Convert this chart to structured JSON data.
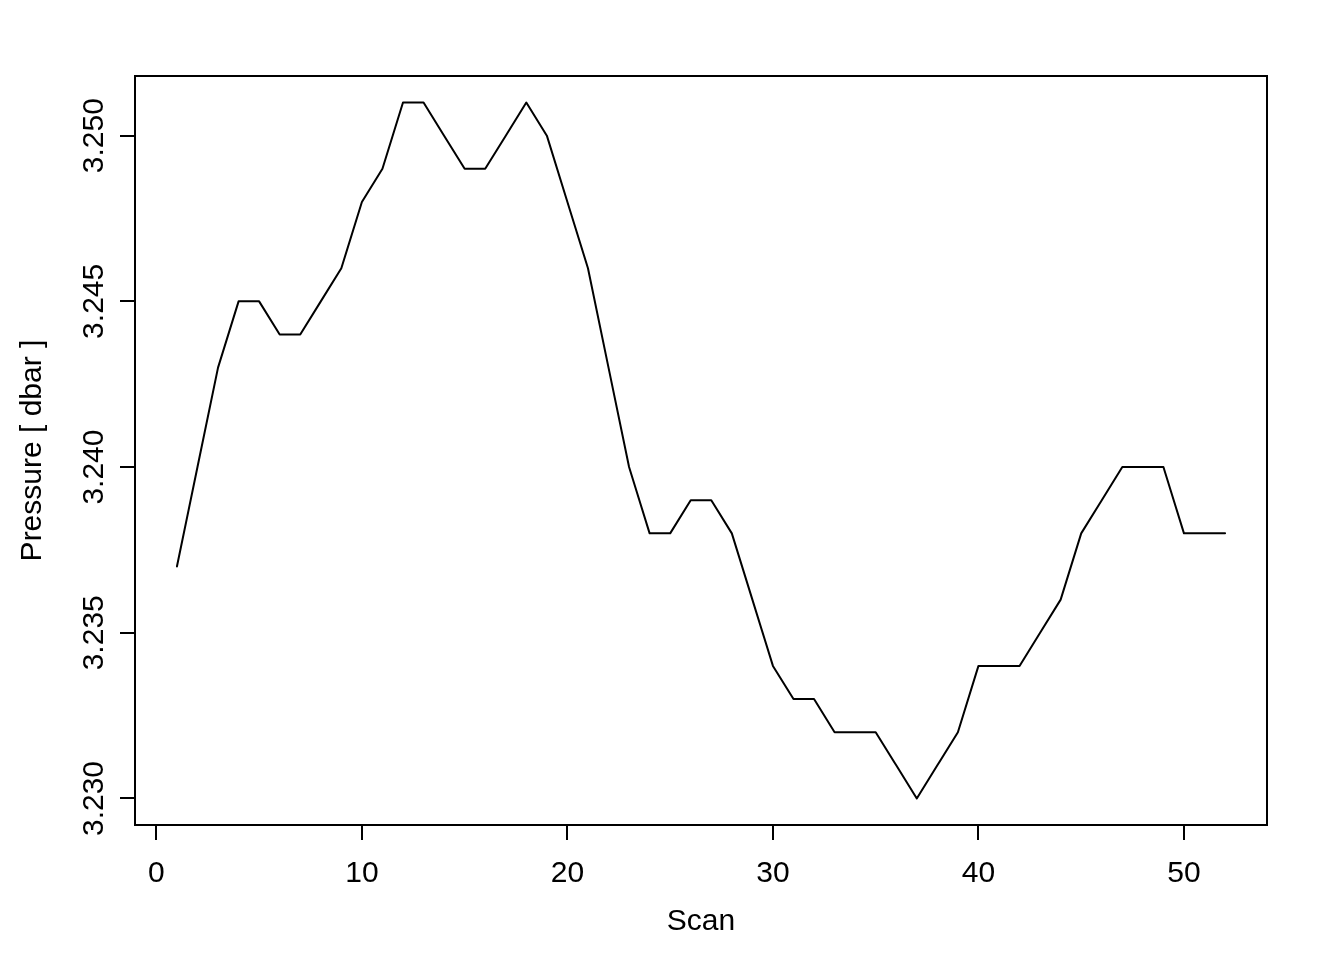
{
  "chart_data": {
    "type": "line",
    "xlabel": "Scan",
    "ylabel": "Pressure [ dbar ]",
    "x": [
      1,
      2,
      3,
      4,
      5,
      6,
      7,
      8,
      9,
      10,
      11,
      12,
      13,
      14,
      15,
      16,
      17,
      18,
      19,
      20,
      21,
      22,
      23,
      24,
      25,
      26,
      27,
      28,
      29,
      30,
      31,
      32,
      33,
      34,
      35,
      36,
      37,
      38,
      39,
      40,
      41,
      42,
      43,
      44,
      45,
      46,
      47,
      48,
      49,
      50,
      51,
      52
    ],
    "series": [
      {
        "color": "#000000",
        "values": [
          3.237,
          3.24,
          3.243,
          3.245,
          3.245,
          3.244,
          3.244,
          3.245,
          3.246,
          3.248,
          3.249,
          3.251,
          3.251,
          3.25,
          3.249,
          3.249,
          3.25,
          3.251,
          3.25,
          3.248,
          3.246,
          3.243,
          3.24,
          3.238,
          3.238,
          3.239,
          3.239,
          3.238,
          3.236,
          3.234,
          3.233,
          3.233,
          3.232,
          3.232,
          3.232,
          3.231,
          3.23,
          3.231,
          3.232,
          3.234,
          3.234,
          3.234,
          3.235,
          3.236,
          3.238,
          3.239,
          3.24,
          3.24,
          3.24,
          3.238,
          3.238,
          3.238
        ]
      }
    ],
    "xlim": [
      -1.04,
      54.04
    ],
    "ylim": [
      3.2292,
      3.2518
    ],
    "xticks": [
      0,
      10,
      20,
      30,
      40,
      50
    ],
    "yticks": [
      {
        "value": 3.23,
        "label": "3.230"
      },
      {
        "value": 3.235,
        "label": "3.235"
      },
      {
        "value": 3.24,
        "label": "3.240"
      },
      {
        "value": 3.245,
        "label": "3.245"
      },
      {
        "value": 3.25,
        "label": "3.250"
      }
    ],
    "marker": "none",
    "line_style": "solid"
  }
}
